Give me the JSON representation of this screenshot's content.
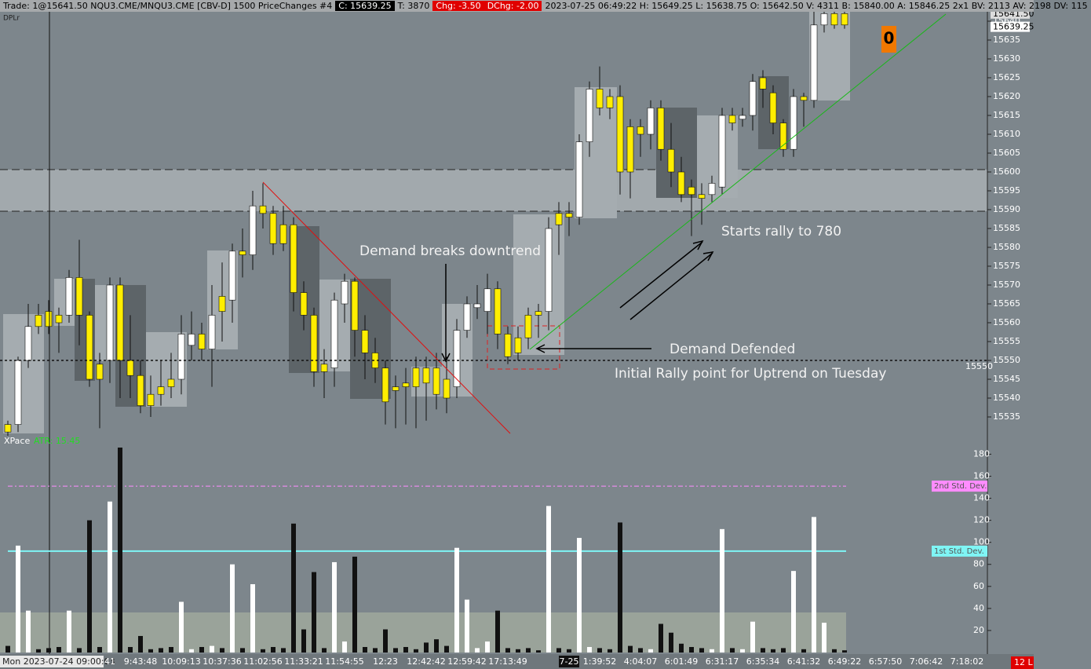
{
  "header": [
    {
      "text": "Trade: 1@15641.50  NQU3.CME/MNQU3.CME [CBV-D]  1500 PriceChanges  #4"
    },
    {
      "text": "C: 15639.25",
      "background": "#000000",
      "color": "#ffffff"
    },
    {
      "text": "T: 3870"
    },
    {
      "text": "Chg: -3.50",
      "background": "#e00000",
      "color": "#ffffff"
    },
    {
      "text": "DChg: -2.00",
      "background": "#e00000",
      "color": "#ffffff"
    },
    {
      "text": "2023-07-25 06:49:22  H: 15649.25  L: 15638.75  O: 15642.50  V: 4311  B: 15840.00  A: 15846.25  2x1  BV: 2113  AV: 2198  DV: 115"
    }
  ],
  "study_label": "DPLr",
  "chart_data": [
    {
      "type": "candlestick",
      "categories": [
        "Mon 2023-07-24  09:00:03",
        null,
        null,
        null,
        null,
        null,
        null,
        null,
        null,
        null,
        "41",
        null,
        null,
        "9:43:48",
        null,
        null,
        null,
        "10:09:13",
        null,
        null,
        null,
        "10:37:36",
        null,
        null,
        null,
        "11:02:56",
        null,
        null,
        null,
        "11:33:21",
        null,
        null,
        null,
        "11:54:55",
        null,
        null,
        null,
        "12:23",
        null,
        null,
        null,
        "12:42:42",
        null,
        null,
        null,
        "12:59:42",
        null,
        null,
        null,
        "17:13:49",
        null,
        null,
        null,
        null,
        null,
        "7-25",
        null,
        null,
        "1:39:52",
        null,
        null,
        null,
        "4:04:07",
        null,
        null,
        null,
        "6:01:49",
        null,
        null,
        null,
        "6:31:17",
        null,
        null,
        null,
        "6:35:34",
        null,
        null,
        null,
        "6:41:32",
        null,
        null,
        null,
        "6:49:22",
        null,
        null,
        null,
        "6:57:50",
        null,
        null,
        null,
        "7:06:42",
        null,
        null,
        null,
        "7:18:02"
      ],
      "open": [
        15533,
        15533,
        15550,
        15562,
        15563,
        15562,
        15562,
        15572,
        15562,
        15549,
        15550,
        15570,
        15550,
        15546,
        15541,
        15543,
        15545,
        15545,
        15554,
        15557,
        15553,
        15567,
        15566,
        15579,
        15578,
        15591,
        15589,
        15586,
        15586,
        15568,
        15562,
        15549,
        15548,
        15565,
        15571,
        15558,
        15552,
        15548,
        15543,
        15544,
        15548,
        15548,
        15548,
        15545,
        15543,
        15558,
        15564,
        15563,
        15569,
        15557,
        15556,
        15562,
        15563,
        15563,
        15589,
        15589,
        15588,
        15608,
        15622,
        15620,
        15620,
        15612,
        15612,
        15610,
        15617,
        15606,
        15600,
        15596,
        15594,
        15594,
        15596,
        15615,
        15614,
        15615,
        15625,
        15621,
        15613,
        15606,
        15620,
        15619,
        15639,
        15642,
        15642,
        null,
        null,
        null,
        null,
        null,
        null,
        null,
        null,
        null,
        null,
        null,
        null
      ],
      "high": [
        15534,
        15551,
        15565,
        15565,
        15566,
        15564,
        15574,
        15582,
        15563,
        15552,
        15572,
        15572,
        15562,
        15550,
        15546,
        15550,
        15552,
        15562,
        15563,
        15560,
        15570,
        15576,
        15581,
        15585,
        15595,
        15597,
        15591,
        15591,
        15588,
        15571,
        15564,
        15553,
        15568,
        15573,
        15572,
        15562,
        15556,
        15550,
        15546,
        15548,
        15551,
        15551,
        15552,
        15551,
        15561,
        15567,
        15570,
        15573,
        15571,
        15559,
        15559,
        15564,
        15565,
        15588,
        15592,
        15592,
        15610,
        15624,
        15628,
        15622,
        15623,
        15614,
        15614,
        15619,
        15619,
        15613,
        15604,
        15598,
        15597,
        15599,
        15617,
        15617,
        15617,
        15626,
        15627,
        15623,
        15614,
        15622,
        15621,
        15643,
        15643,
        15643,
        15643,
        null,
        null,
        null,
        null,
        null,
        null,
        null,
        null,
        null,
        null,
        null,
        null
      ],
      "low": [
        15530,
        15531,
        15548,
        15557,
        15557,
        15552,
        15560,
        15554,
        15543,
        15532,
        15544,
        15540,
        15540,
        15536,
        15535,
        15538,
        15540,
        15541,
        15550,
        15550,
        15543,
        15555,
        15560,
        15572,
        15574,
        15585,
        15578,
        15579,
        15563,
        15558,
        15543,
        15540,
        15543,
        15560,
        15551,
        15545,
        15544,
        15533,
        15532,
        15533,
        15532,
        15534,
        15537,
        15536,
        15540,
        15556,
        15561,
        15557,
        15553,
        15549,
        15550,
        15553,
        15556,
        15558,
        15578,
        15583,
        15586,
        15604,
        15615,
        15614,
        15594,
        15593,
        15604,
        15606,
        15603,
        15596,
        15592,
        15583,
        15586,
        15592,
        15594,
        15611,
        15612,
        15611,
        15617,
        15610,
        15604,
        15604,
        15612,
        15617,
        15637,
        15638,
        15638,
        null,
        null,
        null,
        null,
        null,
        null,
        null,
        null,
        null,
        null,
        null,
        null
      ],
      "close": [
        15531,
        15550,
        15559,
        15559,
        15559,
        15560,
        15572,
        15562,
        15545,
        15545,
        15570,
        15550,
        15546,
        15538,
        15538,
        15541,
        15543,
        15557,
        15557,
        15553,
        15562,
        15563,
        15579,
        15578,
        15591,
        15589,
        15581,
        15581,
        15568,
        15562,
        15547,
        15547,
        15566,
        15571,
        15558,
        15552,
        15548,
        15539,
        15542,
        15543,
        15543,
        15544,
        15541,
        15540,
        15558,
        15565,
        15565,
        15569,
        15557,
        15551,
        15552,
        15556,
        15562,
        15585,
        15586,
        15588,
        15608,
        15622,
        15617,
        15617,
        15600,
        15600,
        15610,
        15617,
        15606,
        15600,
        15594,
        15594,
        15593,
        15597,
        15615,
        15613,
        15615,
        15624,
        15622,
        15613,
        15606,
        15620,
        15619,
        15639,
        15642,
        15639,
        15639,
        null,
        null,
        null,
        null,
        null,
        null,
        null,
        null,
        null,
        null,
        null,
        null
      ],
      "up_color": "#ffffff",
      "down_color": "#ffee00",
      "ylim": [
        15530,
        15642.5
      ],
      "yticks": [
        15535,
        15540,
        15545,
        15550,
        15555,
        15560,
        15565,
        15570,
        15575,
        15580,
        15585,
        15590,
        15595,
        15600,
        15605,
        15610,
        15615,
        15620,
        15625,
        15630,
        15635,
        15640
      ],
      "price_markers": [
        {
          "value": 15641.5,
          "label": "15641.50"
        },
        {
          "value": 15639.25,
          "label": "15639.25"
        }
      ],
      "hline": 15550,
      "annotations": [
        "Demand breaks downtrend",
        "Starts rally to 780",
        "Demand Defended",
        "Initial Rally point for Uptrend on Tuesday"
      ],
      "counter": 0,
      "study": {
        "name": "XPace",
        "value_label": "ATR: 15.45",
        "value": 15.45
      }
    },
    {
      "type": "bar",
      "values": [
        6,
        97,
        38,
        3,
        4,
        5,
        38,
        4,
        120,
        5,
        137,
        186,
        5,
        15,
        3,
        4,
        5,
        46,
        3,
        5,
        6,
        4,
        80,
        4,
        62,
        3,
        5,
        4,
        117,
        21,
        73,
        4,
        82,
        10,
        87,
        5,
        4,
        21,
        4,
        5,
        3,
        9,
        12,
        6,
        95,
        48,
        4,
        10,
        38,
        4,
        3,
        4,
        2,
        133,
        4,
        3,
        104,
        5,
        4,
        3,
        118,
        6,
        4,
        3,
        26,
        18,
        8,
        5,
        4,
        3,
        112,
        4,
        3,
        28,
        4,
        3,
        4,
        74,
        3,
        123,
        27,
        3,
        2,
        null,
        null,
        null,
        null,
        null,
        null,
        null,
        null,
        null,
        null,
        null,
        null
      ],
      "up_color": "#ffffff",
      "down_color": "#111111",
      "ylim": [
        0,
        186
      ],
      "yticks": [
        20,
        40,
        60,
        80,
        100,
        120,
        140,
        160,
        180
      ],
      "std_dev_lines": [
        {
          "name": "2nd Std. Dev.",
          "value": 151,
          "color": "#ff8cff"
        },
        {
          "name": "1st Std. Dev.",
          "value": 92,
          "color": "#7ff5f5"
        }
      ],
      "corner_label": "12 L"
    }
  ]
}
